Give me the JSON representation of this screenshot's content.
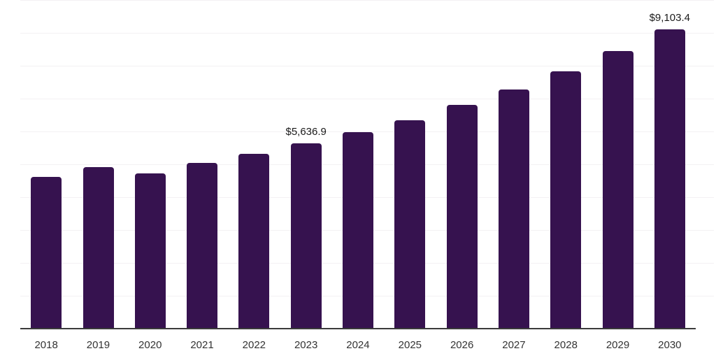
{
  "chart_data": {
    "type": "bar",
    "title": "",
    "xlabel": "",
    "ylabel": "",
    "categories": [
      "2018",
      "2019",
      "2020",
      "2021",
      "2022",
      "2023",
      "2024",
      "2025",
      "2026",
      "2027",
      "2028",
      "2029",
      "2030"
    ],
    "values": [
      4620,
      4910,
      4720,
      5040,
      5310,
      5636.9,
      5970,
      6350,
      6810,
      7270,
      7840,
      8440,
      9103.4
    ],
    "annotations": [
      {
        "category": "2023",
        "text": "$5,636.9"
      },
      {
        "category": "2030",
        "text": "$9,103.4"
      }
    ],
    "ylim": [
      0,
      10000
    ],
    "gridline_interval": 1000,
    "grid": "horizontal",
    "legend": "none",
    "colors": {
      "bar": "#36124F",
      "gridline": "#F3F1F3",
      "axis_line": "#3B3B3B",
      "data_label": "#1A1A1A",
      "tick_label": "#333333",
      "background": "#FFFFFF"
    }
  }
}
